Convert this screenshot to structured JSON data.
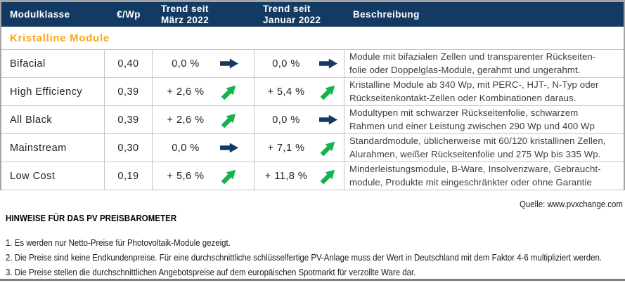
{
  "colors": {
    "header_navy": "#123a63",
    "arrow_flat_navy": "#123a63",
    "arrow_up_green": "#14b34f",
    "section_orange": "#faa61b",
    "grid_gray": "#c6c6c6"
  },
  "table": {
    "columns": [
      {
        "label": "Modulklasse"
      },
      {
        "label": "€/Wp"
      },
      {
        "label": "Trend seit\nMärz 2022"
      },
      {
        "label": "Trend seit\nJanuar 2022"
      },
      {
        "label": "Beschreibung"
      }
    ],
    "section": "Kristalline Module",
    "rows": [
      {
        "name": "Bifacial",
        "price": "0,40",
        "march": {
          "value": "0,0 %",
          "dir": "flat"
        },
        "january": {
          "value": "0,0 %",
          "dir": "flat"
        },
        "description": "Module mit bifazialen Zellen und transparenter Rückseiten-\nfolie oder Doppelglas-Module, gerahmt und ungerahmt."
      },
      {
        "name": "High Efficiency",
        "price": "0,39",
        "march": {
          "value": "+ 2,6 %",
          "dir": "up"
        },
        "january": {
          "value": "+ 5,4 %",
          "dir": "up"
        },
        "description": "Kristalline Module ab 340 Wp, mit PERC-, HJT-, N-Typ oder\nRückseitenkontakt-Zellen oder Kombinationen daraus."
      },
      {
        "name": "All Black",
        "price": "0,39",
        "march": {
          "value": "+ 2,6 %",
          "dir": "up"
        },
        "january": {
          "value": "0,0 %",
          "dir": "flat"
        },
        "description": "Modultypen mit schwarzer Rückseitenfolie, schwarzem\nRahmen und einer Leistung  zwischen 290 Wp und 400 Wp"
      },
      {
        "name": "Mainstream",
        "price": "0,30",
        "march": {
          "value": "0,0 %",
          "dir": "flat"
        },
        "january": {
          "value": "+ 7,1 %",
          "dir": "up"
        },
        "description": "Standardmodule, üblicherweise mit 60/120 kristallinen Zellen,\nAlurahmen, weißer Rückseitenfolie und 275 Wp bis 335 Wp."
      },
      {
        "name": "Low Cost",
        "price": "0,19",
        "march": {
          "value": "+ 5,6 %",
          "dir": "up"
        },
        "january": {
          "value": "+ 11,8 %",
          "dir": "up"
        },
        "description": "Minderleistungsmodule, B-Ware, Insolvenzware, Gebraucht-\nmodule, Produkte mit eingeschränkter oder ohne Garantie"
      }
    ]
  },
  "source": "Quelle: www.pvxchange.com",
  "notes_title": "HINWEISE FÜR DAS PV PREISBAROMETER",
  "notes": [
    "1.  Es werden nur Netto-Preise für Photovoltaik-Module gezeigt.",
    "2. Die Preise sind keine Endkundenpreise. Für eine durchschnittliche schlüsselfertige PV-Anlage muss der Wert in Deutschland mit dem Faktor 4-6 multipliziert werden.",
    "3. Die Preise stellen die durchschnittlichen Angebotspreise auf dem europäischen Spotmarkt für verzollte Ware dar."
  ]
}
